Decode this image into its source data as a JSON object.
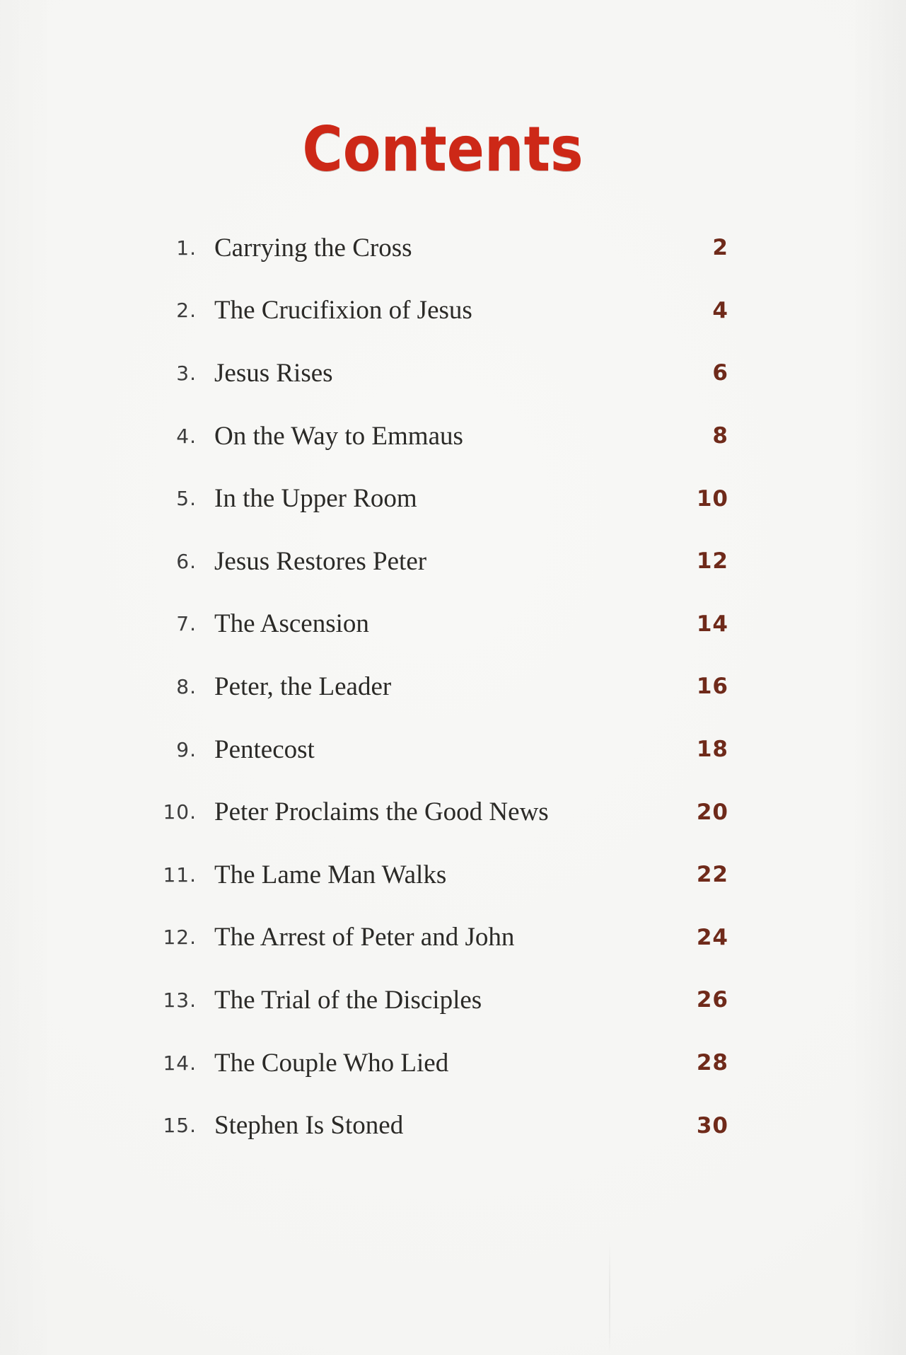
{
  "page": {
    "title": "Contents",
    "colors": {
      "title_red": "#cd2817",
      "page_number_red": "#6f2a1a",
      "entry_ink": "#2b2a27",
      "index_gray": "#3c3c3c",
      "paper": "#f5f5f3"
    }
  },
  "toc": {
    "entries": [
      {
        "num": "1.",
        "title": "Carrying the Cross",
        "page": "2"
      },
      {
        "num": "2.",
        "title": "The Crucifixion of Jesus",
        "page": "4"
      },
      {
        "num": "3.",
        "title": "Jesus Rises",
        "page": "6"
      },
      {
        "num": "4.",
        "title": "On the Way to Emmaus",
        "page": "8"
      },
      {
        "num": "5.",
        "title": "In the Upper Room",
        "page": "10"
      },
      {
        "num": "6.",
        "title": "Jesus Restores Peter",
        "page": "12"
      },
      {
        "num": "7.",
        "title": "The Ascension",
        "page": "14"
      },
      {
        "num": "8.",
        "title": "Peter, the Leader",
        "page": "16"
      },
      {
        "num": "9.",
        "title": "Pentecost",
        "page": "18"
      },
      {
        "num": "10.",
        "title": "Peter Proclaims the Good News",
        "page": "20"
      },
      {
        "num": "11.",
        "title": "The Lame Man Walks",
        "page": "22"
      },
      {
        "num": "12.",
        "title": "The Arrest of Peter and John",
        "page": "24"
      },
      {
        "num": "13.",
        "title": "The Trial of the Disciples",
        "page": "26"
      },
      {
        "num": "14.",
        "title": "The Couple Who Lied",
        "page": "28"
      },
      {
        "num": "15.",
        "title": "Stephen Is Stoned",
        "page": "30"
      }
    ]
  }
}
